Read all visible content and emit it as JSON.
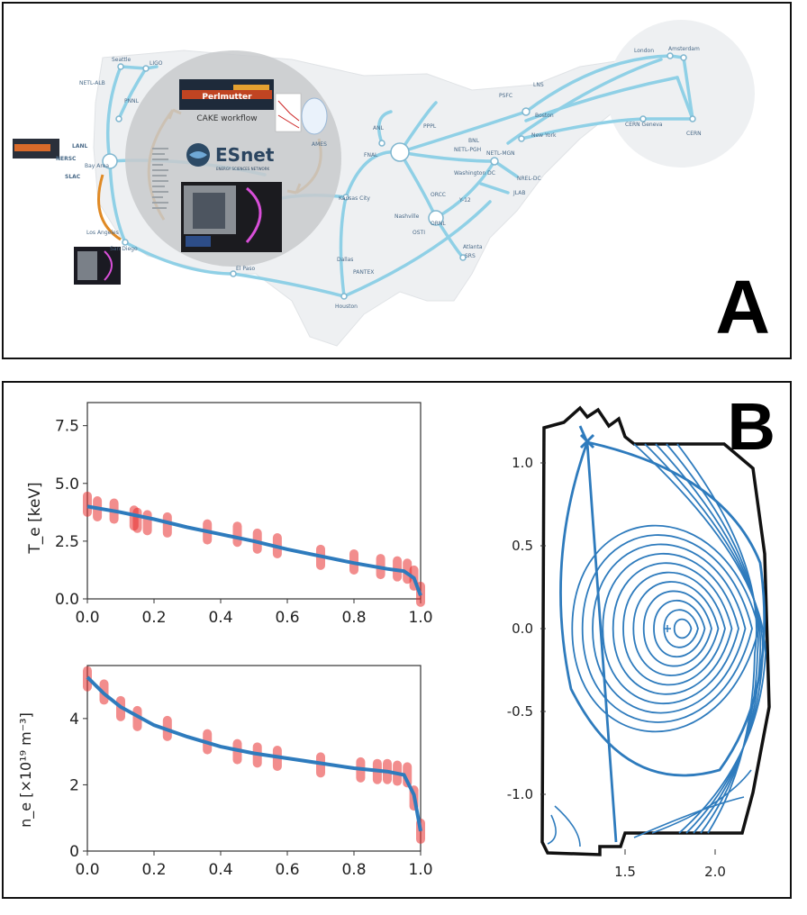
{
  "panel_a": {
    "letter": "A",
    "esnet_label": "ESnet",
    "esnet_sub": "ENERGY SCIENCES NETWORK",
    "workflow_label": "CAKE workflow",
    "perlmutter_label": "Perlmutter",
    "sites": [
      "PNNL",
      "LIGO",
      "NETL-ALB",
      "Seattle",
      "LANL",
      "NERSC",
      "Bay Area",
      "SLAC",
      "LBNL",
      "SNLA",
      "Los Angeles",
      "San Diego",
      "El Paso",
      "Houston",
      "PANTEX",
      "Dallas",
      "Kansas City",
      "AMES",
      "ANL",
      "FNAL",
      "PPPL",
      "BNL",
      "PSFC",
      "LNS",
      "Boston",
      "New York",
      "NETL-PGH",
      "NETL-MGN",
      "Washington DC",
      "NREL-DC",
      "JLAB",
      "ORCC",
      "Y-12",
      "ORNL",
      "Nashville",
      "Atlanta",
      "SRS",
      "OSTI",
      "London",
      "Amsterdam",
      "CERN",
      "CERN Geneva",
      "Chicago"
    ]
  },
  "panel_b": {
    "letter": "B",
    "te_plot": {
      "ylabel": "T_e [keV]",
      "yticks": [
        "0.0",
        "2.5",
        "5.0",
        "7.5"
      ],
      "xticks": [
        "0.0",
        "0.2",
        "0.4",
        "0.6",
        "0.8",
        "1.0"
      ]
    },
    "ne_plot": {
      "ylabel": "n_e [×10¹⁹ m⁻³]",
      "yticks": [
        "0",
        "2",
        "4"
      ],
      "xticks": [
        "0.0",
        "0.2",
        "0.4",
        "0.6",
        "0.8",
        "1.0"
      ]
    },
    "equilibrium_plot": {
      "yticks": [
        "1.0",
        "0.5",
        "0.0",
        "-0.5",
        "-1.0"
      ],
      "xticks": [
        "1.5",
        "2.0"
      ]
    }
  },
  "chart_data": [
    {
      "type": "scatter",
      "ylabel": "T_e [keV]",
      "xlim": [
        0,
        1.0
      ],
      "ylim": [
        0,
        8.5
      ],
      "x": [
        0.0,
        0.03,
        0.08,
        0.14,
        0.15,
        0.18,
        0.24,
        0.36,
        0.45,
        0.51,
        0.57,
        0.7,
        0.8,
        0.88,
        0.93,
        0.96,
        0.98,
        1.0
      ],
      "y": [
        4.1,
        3.9,
        3.8,
        3.5,
        3.4,
        3.3,
        3.2,
        2.9,
        2.8,
        2.5,
        2.3,
        1.8,
        1.6,
        1.4,
        1.3,
        1.2,
        0.9,
        0.2
      ],
      "fit": {
        "x": [
          0,
          0.1,
          0.2,
          0.3,
          0.4,
          0.5,
          0.6,
          0.7,
          0.8,
          0.9,
          0.95,
          0.98,
          1.0
        ],
        "y": [
          4.0,
          3.75,
          3.45,
          3.1,
          2.8,
          2.5,
          2.15,
          1.85,
          1.55,
          1.3,
          1.2,
          0.9,
          0.15
        ]
      }
    },
    {
      "type": "scatter",
      "ylabel": "n_e [×10¹⁹ m⁻³]",
      "xlim": [
        0,
        1.0
      ],
      "ylim": [
        0,
        5.6
      ],
      "x": [
        0.0,
        0.05,
        0.1,
        0.15,
        0.24,
        0.36,
        0.45,
        0.51,
        0.57,
        0.7,
        0.82,
        0.87,
        0.9,
        0.93,
        0.96,
        0.98,
        1.0
      ],
      "y": [
        5.2,
        4.8,
        4.3,
        4.0,
        3.7,
        3.3,
        3.0,
        2.9,
        2.8,
        2.6,
        2.45,
        2.4,
        2.4,
        2.35,
        2.3,
        1.6,
        0.6
      ],
      "fit": {
        "x": [
          0,
          0.05,
          0.1,
          0.2,
          0.3,
          0.4,
          0.5,
          0.6,
          0.7,
          0.8,
          0.9,
          0.95,
          0.98,
          1.0
        ],
        "y": [
          5.25,
          4.75,
          4.35,
          3.8,
          3.45,
          3.15,
          2.95,
          2.8,
          2.65,
          2.5,
          2.4,
          2.3,
          1.7,
          0.6
        ]
      }
    },
    {
      "type": "line",
      "ylim": [
        -1.3,
        1.3
      ],
      "xlim": [
        1.0,
        2.4
      ],
      "magnetic_axis": {
        "R": 1.77,
        "Z": 0.0
      },
      "x_point": {
        "R": 1.29,
        "Z": 1.12
      }
    }
  ]
}
